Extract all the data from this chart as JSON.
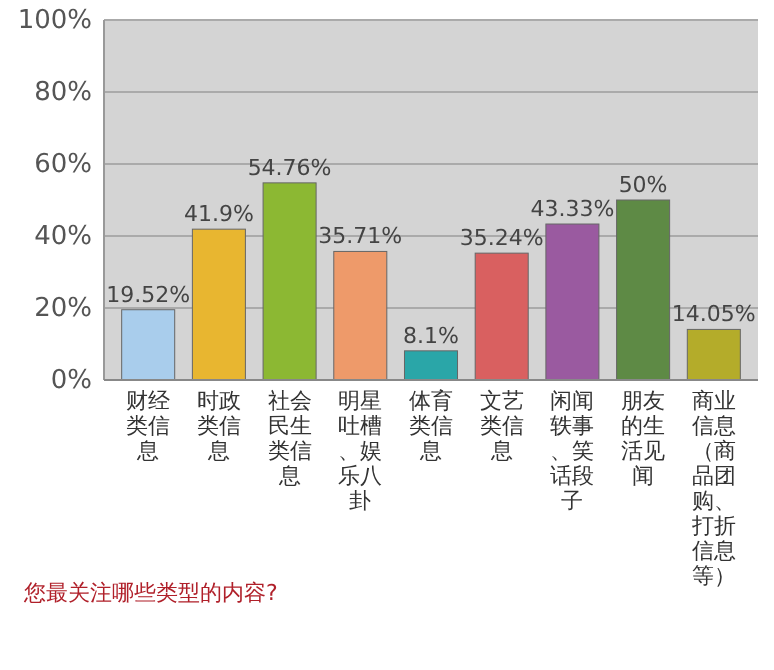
{
  "chart_data": {
    "type": "bar",
    "title": "您最关注哪些类型的内容?",
    "categories": [
      "财经类信息",
      "时政类信息",
      "社会民生类信息",
      "明星吐槽、娱乐八卦",
      "体育类信息",
      "文艺类信息",
      "闲闻轶事、笑话段子",
      "朋友的生活见闻",
      "商业信息（商品团购、打折信息等）"
    ],
    "values": [
      19.52,
      41.9,
      54.76,
      35.71,
      8.1,
      35.24,
      43.33,
      50,
      14.05
    ],
    "colors": [
      "#a9cdec",
      "#e8b630",
      "#8cb833",
      "#ee9a6a",
      "#2aa6a8",
      "#d96060",
      "#9a5aa0",
      "#5e8a45",
      "#b4ac2a"
    ],
    "value_labels": [
      "19.52%",
      "41.9%",
      "54.76%",
      "35.71%",
      "8.1%",
      "35.24%",
      "43.33%",
      "50%",
      "14.05%"
    ],
    "ylim": [
      0,
      100
    ],
    "yticks": [
      {
        "value": 0,
        "label": "0%"
      },
      {
        "value": 20,
        "label": "20%"
      },
      {
        "value": 40,
        "label": "40%"
      },
      {
        "value": 60,
        "label": "60%"
      },
      {
        "value": 80,
        "label": "80%"
      },
      {
        "value": 100,
        "label": "100%"
      }
    ],
    "grid": "y"
  }
}
